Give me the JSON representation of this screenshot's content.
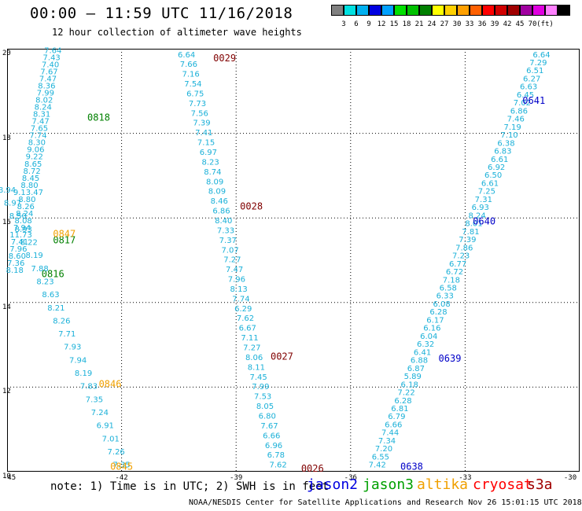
{
  "header": {
    "title": "00:00 – 11:59 UTC 11/16/2018",
    "subtitle": "12 hour collection of altimeter wave heights"
  },
  "color_scale": {
    "unit": "(ft)",
    "colors": [
      "#808080",
      "#00e0e0",
      "#00b0f0",
      "#0000e0",
      "#00a0ff",
      "#00e000",
      "#00c000",
      "#008000",
      "#ffff00",
      "#ffd000",
      "#ffa000",
      "#ff6000",
      "#ff0000",
      "#d00000",
      "#a00000",
      "#a000a0",
      "#e000e0",
      "#ff80ff",
      "#000000"
    ],
    "labels": [
      "3",
      "6",
      "9",
      "12",
      "15",
      "18",
      "21",
      "24",
      "27",
      "30",
      "33",
      "36",
      "39",
      "42",
      "45",
      "70"
    ]
  },
  "axes": {
    "x_ticks": [
      "-45",
      "-42",
      "-39",
      "-36",
      "-33",
      "-30"
    ],
    "y_ticks": [
      "20",
      "18",
      "16",
      "14",
      "12",
      "10"
    ],
    "lon_range": [
      -45,
      -30
    ],
    "lat_range": [
      10,
      20
    ]
  },
  "tracks": [
    {
      "satellite": "jason3",
      "color": "#1ab0d8",
      "start": [
        -43.8,
        19.9
      ],
      "end": [
        -44.8,
        14.7
      ],
      "values": [
        "7.64",
        "7.43",
        "7.40",
        "7.67",
        "7.47",
        "8.36",
        "7.99",
        "8.02",
        "8.24",
        "8.31",
        "7.47",
        "7.65",
        "7.74",
        "8.30",
        "9.06",
        "9.22",
        "8.65",
        "8.72",
        "8.45",
        "8.80",
        "9.13.47",
        "8.80",
        "8.26",
        "8.24",
        "8.08",
        "7.94",
        "11.73",
        "7.41",
        "7.96",
        "8.60",
        "7.36",
        "8.18"
      ],
      "labels": [
        {
          "text": "0818",
          "color": "#008000",
          "lon": -42.6,
          "lat": 18.3
        },
        {
          "text": "0817",
          "color": "#008000",
          "lon": -43.5,
          "lat": 15.4
        },
        {
          "text": "0816",
          "color": "#008000",
          "lon": -43.8,
          "lat": 14.6
        }
      ]
    },
    {
      "satellite": "altika",
      "color": "#1ab0d8",
      "start": [
        -45.0,
        16.6
      ],
      "end": [
        -42.0,
        10.1
      ],
      "values": [
        "8.94",
        "8.97",
        "8.50",
        "8.93",
        "8.22",
        "8.19",
        "7.88",
        "8.23",
        "8.63",
        "8.21",
        "8.26",
        "7.71",
        "7.93",
        "7.94",
        "8.19",
        "7.83",
        "7.35",
        "7.24",
        "6.91",
        "7.01",
        "7.26",
        "7.35"
      ],
      "labels": [
        {
          "text": "0847",
          "color": "#f0a000",
          "lon": -43.5,
          "lat": 15.55
        },
        {
          "text": "0846",
          "color": "#f0a000",
          "lon": -42.3,
          "lat": 12.0
        },
        {
          "text": "0845",
          "color": "#f0a000",
          "lon": -42.0,
          "lat": 10.05
        }
      ]
    },
    {
      "satellite": "s3a",
      "color": "#1ab0d8",
      "start": [
        -40.3,
        19.8
      ],
      "end": [
        -37.9,
        10.1
      ],
      "values": [
        "6.64",
        "7.66",
        "7.16",
        "7.54",
        "6.75",
        "7.73",
        "7.56",
        "7.39",
        "7.41",
        "7.15",
        "6.97",
        "8.23",
        "8.74",
        "8.09",
        "8.09",
        "8.46",
        "6.86",
        "8.40",
        "7.33",
        "7.37",
        "7.07",
        "7.27",
        "7.47",
        "7.96",
        "8.13",
        "7.74",
        "6.29",
        "7.62",
        "6.67",
        "7.11",
        "7.27",
        "8.06",
        "8.11",
        "7.45",
        "7.99",
        "7.53",
        "8.05",
        "6.80",
        "7.67",
        "6.66",
        "6.96",
        "6.78",
        "7.62"
      ],
      "labels": [
        {
          "text": "0029",
          "color": "#800000",
          "lon": -39.3,
          "lat": 19.7
        },
        {
          "text": "0028",
          "color": "#800000",
          "lon": -38.6,
          "lat": 16.2
        },
        {
          "text": "0027",
          "color": "#800000",
          "lon": -37.8,
          "lat": 12.65
        },
        {
          "text": "0026",
          "color": "#800000",
          "lon": -37.0,
          "lat": 10.0
        }
      ]
    },
    {
      "satellite": "jason2",
      "color": "#1ab0d8",
      "start": [
        -31.0,
        19.8
      ],
      "end": [
        -35.3,
        10.1
      ],
      "values": [
        "6.64",
        "7.29",
        "6.51",
        "6.27",
        "6.63",
        "6.45",
        "7.02",
        "6.86",
        "7.46",
        "7.19",
        "7.10",
        "6.38",
        "6.83",
        "6.61",
        "6.92",
        "6.50",
        "6.61",
        "7.25",
        "7.31",
        "6.93",
        "8.24",
        "8.01",
        "7.81",
        "7.39",
        "7.86",
        "7.23",
        "6.77",
        "6.72",
        "7.18",
        "6.58",
        "6.33",
        "6.08",
        "6.28",
        "6.17",
        "6.16",
        "6.04",
        "6.32",
        "6.41",
        "6.88",
        "6.87",
        "5.89",
        "6.18",
        "7.22",
        "6.28",
        "6.81",
        "6.79",
        "6.66",
        "7.44",
        "7.34",
        "7.20",
        "6.55",
        "7.42"
      ],
      "labels": [
        {
          "text": "0641",
          "color": "#0000c8",
          "lon": -31.2,
          "lat": 18.7
        },
        {
          "text": "0640",
          "color": "#0000c8",
          "lon": -32.5,
          "lat": 15.85
        },
        {
          "text": "0639",
          "color": "#0000c8",
          "lon": -33.4,
          "lat": 12.6
        },
        {
          "text": "0638",
          "color": "#0000c8",
          "lon": -34.4,
          "lat": 10.05
        }
      ]
    }
  ],
  "note": "note:  1) Time is in UTC;  2) SWH is in feet",
  "legend": [
    {
      "name": "jason2",
      "color": "#0000e0"
    },
    {
      "name": "jason3",
      "color": "#00a000"
    },
    {
      "name": "altika",
      "color": "#f0a000"
    },
    {
      "name": "cryosat",
      "color": "#ff0000"
    },
    {
      "name": "s3a",
      "color": "#a00000"
    }
  ],
  "footer": "NOAA/NESDIS Center for Satellite Applications and Research    Nov 26 15:01:15 UTC 2018"
}
